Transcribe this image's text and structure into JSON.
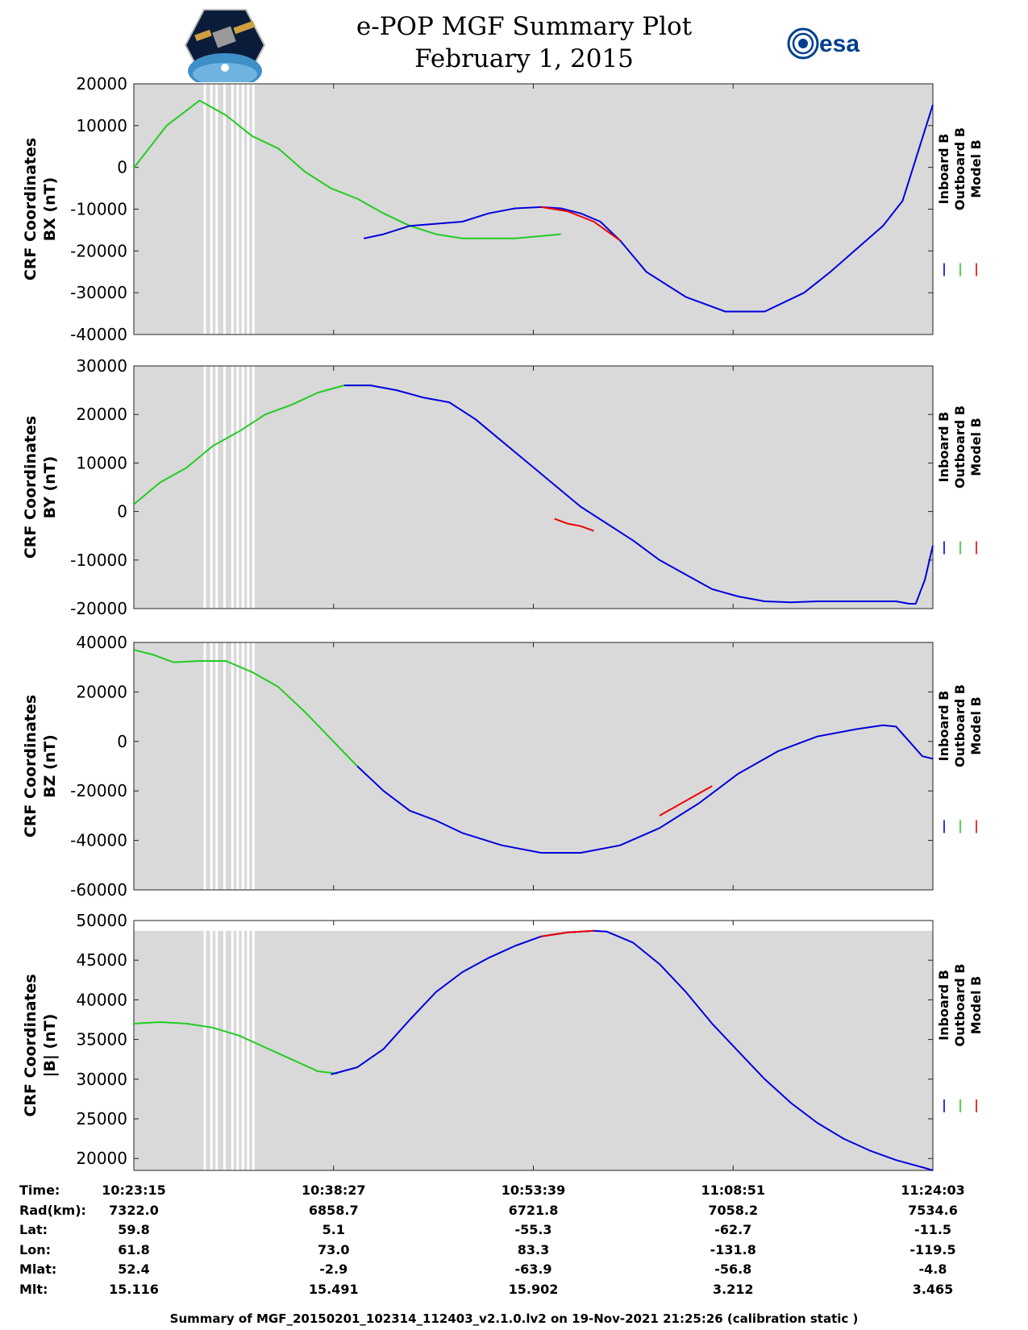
{
  "header": {
    "title_line1": "e-POP MGF Summary Plot",
    "title_line2": "February 1, 2015",
    "left_logo": "cassiope-satellite-logo",
    "right_logo": "esa-logo",
    "esa_text": "esa"
  },
  "colors": {
    "inboard": "#0000dd",
    "outboard": "#22cc22",
    "model": "#ee0000",
    "plot_background": "#d9d9d9"
  },
  "legend": {
    "inboard": "Inboard B",
    "outboard": "Outboard B",
    "model": "Model B"
  },
  "chart_data": [
    {
      "type": "line",
      "ylabel_line1": "CRF Coordinates",
      "ylabel_line2": "BX (nT)",
      "ylim": [
        -40000,
        20000
      ],
      "yticks": [
        20000,
        10000,
        0,
        -10000,
        -20000,
        -30000,
        -40000
      ],
      "xlim_minutes": [
        0,
        60.8
      ],
      "series": [
        {
          "name": "Outboard B",
          "x": [
            0,
            2.5,
            5,
            7,
            9,
            11,
            13,
            15,
            17,
            19,
            21,
            23,
            25,
            27,
            29,
            32.5
          ],
          "values": [
            -100,
            10000,
            16000,
            12500,
            7500,
            4500,
            -1000,
            -5000,
            -7500,
            -11000,
            -14000,
            -16000,
            -17000,
            -17000,
            -17000,
            -16000
          ]
        },
        {
          "name": "Inboard B",
          "x": [
            17.5,
            19,
            21,
            23,
            25,
            27,
            29,
            31,
            32.5,
            34,
            35.5,
            37,
            39,
            42,
            45,
            48,
            51,
            53,
            55,
            57,
            58.5,
            59.5,
            60.8
          ],
          "values": [
            -17000,
            -16000,
            -14000,
            -13500,
            -13000,
            -11000,
            -9800,
            -9500,
            -9800,
            -11000,
            -13000,
            -17500,
            -25000,
            -31000,
            -34500,
            -34500,
            -30000,
            -25000,
            -19500,
            -14000,
            -8000,
            2000,
            15000
          ]
        },
        {
          "name": "Model B",
          "x": [
            31,
            33,
            35,
            37
          ],
          "values": [
            -9500,
            -10500,
            -13000,
            -17500
          ]
        }
      ]
    },
    {
      "type": "line",
      "ylabel_line1": "CRF Coordinates",
      "ylabel_line2": "BY (nT)",
      "ylim": [
        -20000,
        30000
      ],
      "yticks": [
        30000,
        20000,
        10000,
        0,
        -10000,
        -20000
      ],
      "xlim_minutes": [
        0,
        60.8
      ],
      "series": [
        {
          "name": "Outboard B",
          "x": [
            0,
            2,
            4,
            6,
            8,
            10,
            12,
            14,
            16,
            18
          ],
          "values": [
            1500,
            6000,
            9000,
            13500,
            16500,
            20000,
            22000,
            24500,
            26000,
            26000
          ]
        },
        {
          "name": "Inboard B",
          "x": [
            16,
            18,
            20,
            22,
            24,
            26,
            28,
            30,
            32,
            34,
            36,
            38,
            40,
            42,
            44,
            46,
            48,
            50,
            52,
            54,
            56,
            58,
            59,
            59.5,
            60.2,
            60.8
          ],
          "values": [
            26000,
            26000,
            25000,
            23500,
            22500,
            19000,
            14500,
            10000,
            5500,
            1000,
            -2500,
            -6000,
            -10000,
            -13000,
            -16000,
            -17500,
            -18500,
            -18700,
            -18500,
            -18500,
            -18500,
            -18500,
            -19000,
            -19000,
            -14000,
            -7000
          ]
        },
        {
          "name": "Model B",
          "x": [
            32,
            33,
            34,
            35
          ],
          "values": [
            -1500,
            -2500,
            -3000,
            -4000
          ]
        }
      ]
    },
    {
      "type": "line",
      "ylabel_line1": "CRF Coordinates",
      "ylabel_line2": "BZ (nT)",
      "ylim": [
        -60000,
        40000
      ],
      "yticks": [
        40000,
        20000,
        0,
        -20000,
        -40000,
        -60000
      ],
      "xlim_minutes": [
        0,
        60.8
      ],
      "series": [
        {
          "name": "Outboard B",
          "x": [
            0,
            1.5,
            3,
            5,
            7,
            9,
            11,
            13,
            15,
            17
          ],
          "values": [
            37000,
            35000,
            32000,
            32500,
            32500,
            28000,
            22000,
            12000,
            1000,
            -10000
          ]
        },
        {
          "name": "Inboard B",
          "x": [
            17,
            19,
            21,
            23,
            25,
            28,
            31,
            34,
            37,
            40,
            43,
            46,
            49,
            52,
            55,
            57,
            58,
            59,
            60,
            60.8
          ],
          "values": [
            -10000,
            -20000,
            -28000,
            -32000,
            -37000,
            -42000,
            -45000,
            -45000,
            -42000,
            -35000,
            -25000,
            -13000,
            -4000,
            2000,
            5000,
            6500,
            6000,
            0,
            -6000,
            -7000
          ]
        },
        {
          "name": "Model B",
          "x": [
            40,
            42,
            44
          ],
          "values": [
            -30000,
            -24000,
            -18000
          ]
        }
      ]
    },
    {
      "type": "line",
      "ylabel_line1": "CRF Coordinates",
      "ylabel_line2": "|B| (nT)",
      "ylim": [
        18500,
        50000
      ],
      "data_ceiling": 48700,
      "yticks": [
        50000,
        45000,
        40000,
        35000,
        30000,
        25000,
        20000
      ],
      "xlim_minutes": [
        0,
        60.8
      ],
      "series": [
        {
          "name": "Outboard B",
          "x": [
            0,
            2,
            4,
            6,
            8,
            10,
            12,
            14,
            15.5
          ],
          "values": [
            37000,
            37200,
            37000,
            36500,
            35500,
            34000,
            32500,
            31000,
            30700
          ]
        },
        {
          "name": "Inboard B",
          "x": [
            15,
            17,
            19,
            21,
            23,
            25,
            27,
            29,
            31,
            33,
            35,
            36,
            38,
            40,
            42,
            44,
            46,
            48,
            50,
            52,
            54,
            56,
            58,
            60,
            60.8
          ],
          "values": [
            30600,
            31500,
            33800,
            37500,
            41000,
            43500,
            45300,
            46800,
            48000,
            48500,
            48700,
            48600,
            47200,
            44500,
            41000,
            37000,
            33500,
            30000,
            27000,
            24500,
            22500,
            21000,
            19800,
            18900,
            18500
          ]
        },
        {
          "name": "Model B",
          "x": [
            31,
            33,
            35
          ],
          "values": [
            48000,
            48500,
            48700
          ]
        }
      ]
    }
  ],
  "gaps_minutes": [
    5.4,
    5.9,
    6.3,
    6.9,
    7.5,
    7.9,
    8.3,
    8.7,
    9.1
  ],
  "xaxis": {
    "tick_minutes": [
      0,
      15.2,
      30.4,
      45.6,
      60.8
    ],
    "rows": [
      {
        "label": "Time:",
        "values": [
          "10:23:15",
          "10:38:27",
          "10:53:39",
          "11:08:51",
          "11:24:03"
        ]
      },
      {
        "label": "Rad(km):",
        "values": [
          "7322.0",
          "6858.7",
          "6721.8",
          "7058.2",
          "7534.6"
        ]
      },
      {
        "label": "Lat:",
        "values": [
          "59.8",
          "5.1",
          "-55.3",
          "-62.7",
          "-11.5"
        ]
      },
      {
        "label": "Lon:",
        "values": [
          "61.8",
          "73.0",
          "83.3",
          "-131.8",
          "-119.5"
        ]
      },
      {
        "label": "Mlat:",
        "values": [
          "52.4",
          "-2.9",
          "-63.9",
          "-56.8",
          "-4.8"
        ]
      },
      {
        "label": "Mlt:",
        "values": [
          "15.116",
          "15.491",
          "15.902",
          "3.212",
          "3.465"
        ]
      }
    ]
  },
  "footer": "Summary of MGF_20150201_102314_112403_v2.1.0.lv2 on 19-Nov-2021 21:25:26 (calibration static )"
}
